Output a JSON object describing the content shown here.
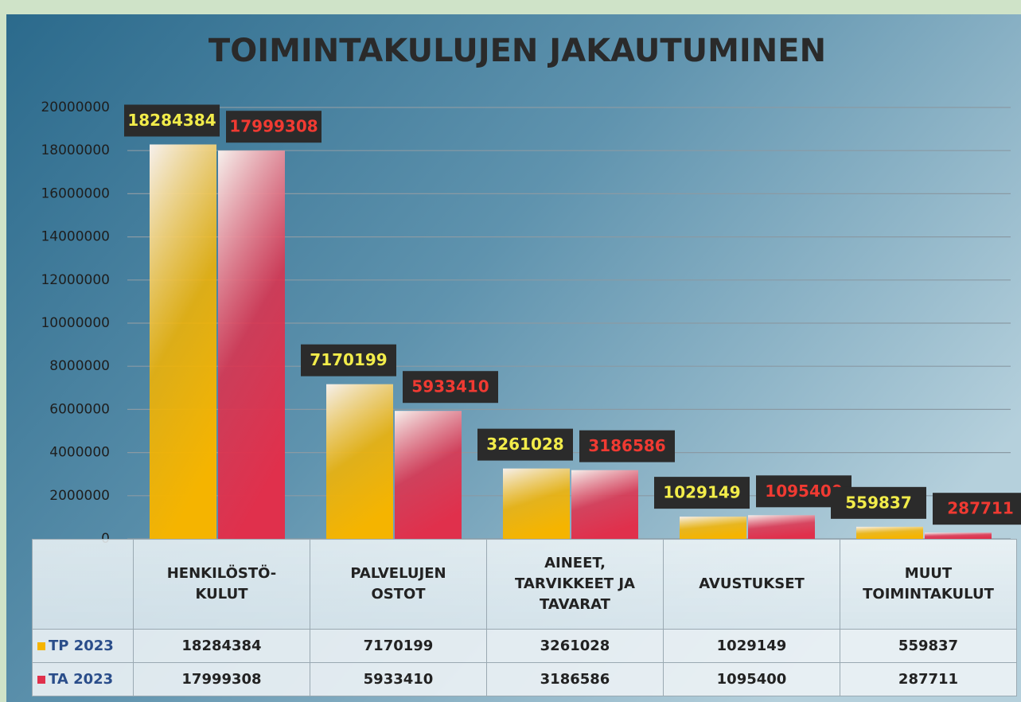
{
  "chart_data": {
    "type": "bar",
    "title": "TOIMINTAKULUJEN JAKAUTUMINEN",
    "categories": [
      "HENKILÖSTÖ-KULUT",
      "PALVELUJEN OSTOT",
      "AINEET, TARVIKKEET JA TAVARAT",
      "AVUSTUKSET",
      "MUUT TOIMINTAKULUT"
    ],
    "series": [
      {
        "name": "TP 2023",
        "color": "#f5b400",
        "label_color": "#f2ec4a",
        "values": [
          18284384,
          7170199,
          3261028,
          1029149,
          559837
        ]
      },
      {
        "name": "TA 2023",
        "color": "#e0304c",
        "label_color": "#f03a32",
        "values": [
          17999308,
          5933410,
          3186586,
          1095400,
          287711
        ]
      }
    ],
    "ylim": [
      0,
      20000000
    ],
    "yticks": [
      0,
      2000000,
      4000000,
      6000000,
      8000000,
      10000000,
      12000000,
      14000000,
      16000000,
      18000000,
      20000000
    ],
    "grid": true
  }
}
